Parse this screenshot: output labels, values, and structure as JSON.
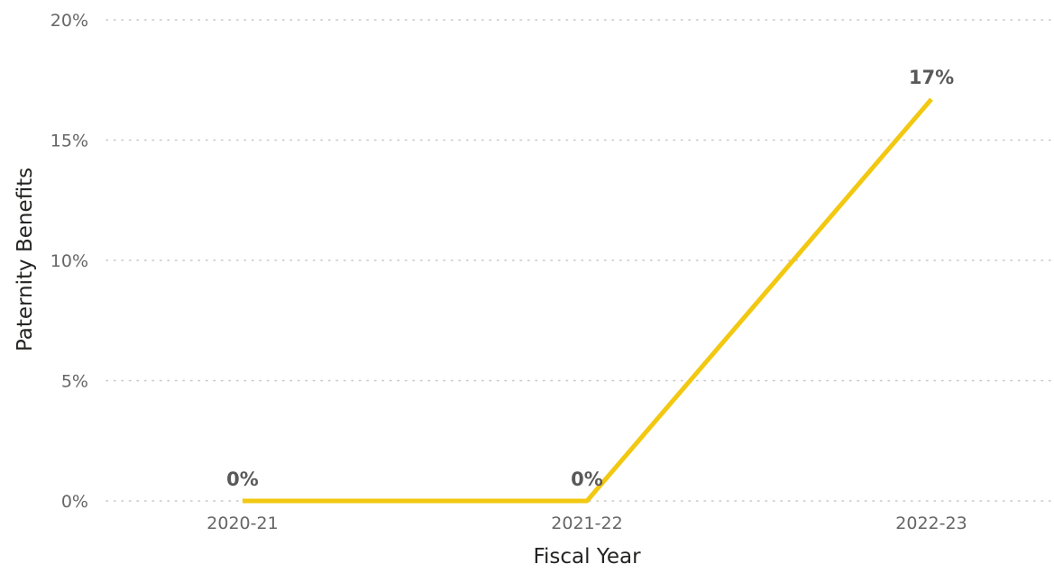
{
  "chart_data": {
    "type": "line",
    "title": "",
    "xlabel": "Fiscal Year",
    "ylabel": "Paternity Benefits",
    "categories": [
      "2020-21",
      "2021-22",
      "2022-23"
    ],
    "series": [
      {
        "values": [
          0,
          0,
          16.7
        ],
        "data_labels": [
          "0%",
          "0%",
          "17%"
        ],
        "color": "#F2C811"
      }
    ],
    "ylim": [
      0,
      20
    ],
    "yticks": [
      0,
      5,
      10,
      15,
      20
    ],
    "ytick_labels": [
      "0%",
      "5%",
      "10%",
      "15%",
      "20%"
    ],
    "grid": true,
    "legend": "none"
  }
}
